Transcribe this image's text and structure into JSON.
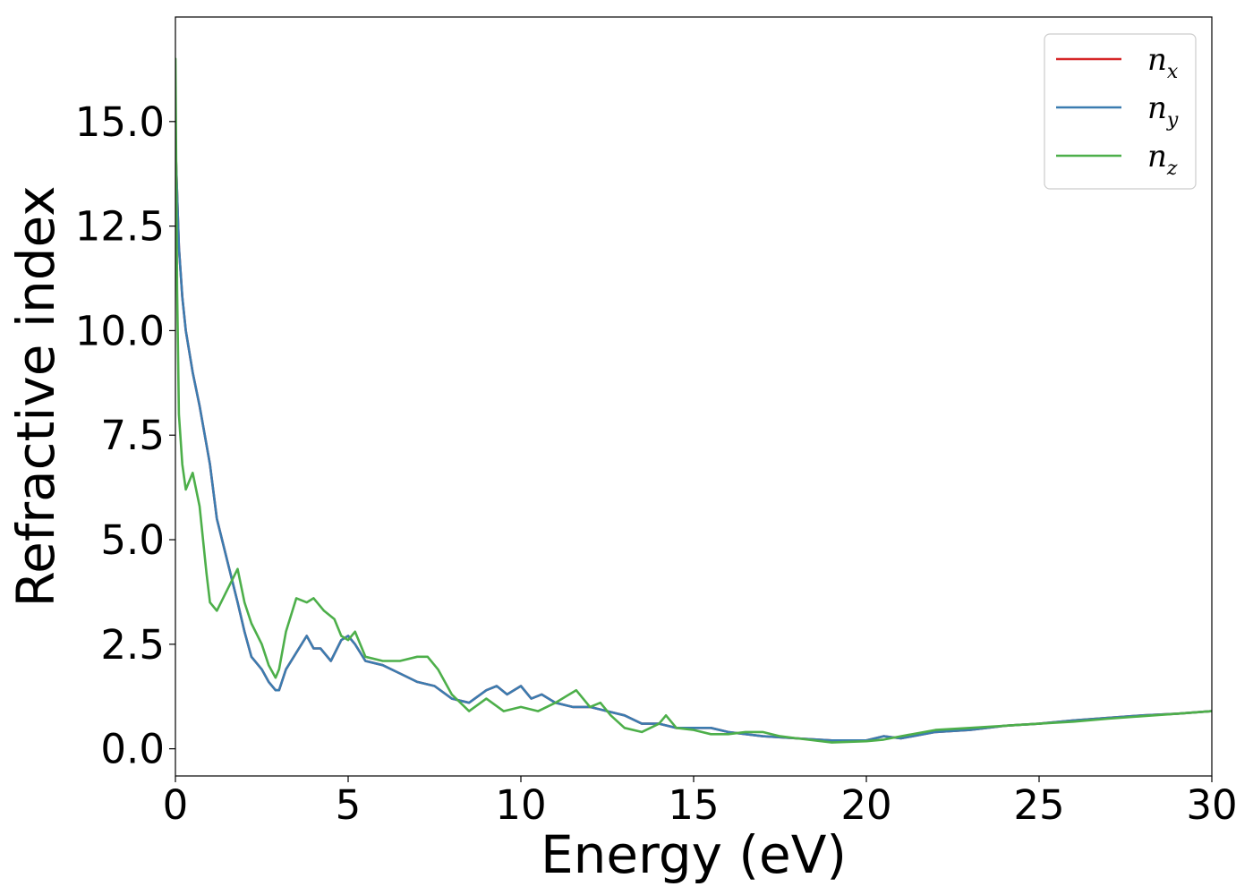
{
  "chart_data": {
    "type": "line",
    "xlabel": "Energy (eV)",
    "ylabel": "Refractive index",
    "xlim": [
      0,
      30
    ],
    "ylim": [
      -0.65,
      17.5
    ],
    "grid": false,
    "legend_position": "top-right",
    "x_ticks": [
      0,
      5,
      10,
      15,
      20,
      25,
      30
    ],
    "x_tick_labels": [
      "0",
      "5",
      "10",
      "15",
      "20",
      "25",
      "30"
    ],
    "y_ticks": [
      0,
      2.5,
      5,
      7.5,
      10,
      12.5,
      15
    ],
    "y_tick_labels": [
      "0.0",
      "2.5",
      "5.0",
      "7.5",
      "10.0",
      "12.5",
      "15.0"
    ],
    "series": [
      {
        "name": "n_x",
        "legend_base": "n",
        "legend_sub": "x",
        "color": "#d62728",
        "x": [
          0,
          0.1,
          0.2,
          0.3,
          0.5,
          0.7,
          1.0,
          1.2,
          1.5,
          1.8,
          2.0,
          2.2,
          2.5,
          2.7,
          2.9,
          3.0,
          3.2,
          3.5,
          3.8,
          4.0,
          4.2,
          4.5,
          4.8,
          5.0,
          5.2,
          5.5,
          6.0,
          6.5,
          7.0,
          7.5,
          8.0,
          8.5,
          9.0,
          9.3,
          9.6,
          10.0,
          10.3,
          10.6,
          11.0,
          11.5,
          12.0,
          12.5,
          13.0,
          13.5,
          14.0,
          14.5,
          15.0,
          15.5,
          16.0,
          17.0,
          18.0,
          19.0,
          20.0,
          20.5,
          21.0,
          22.0,
          23.0,
          24.0,
          25.0,
          26.0,
          27.0,
          28.0,
          29.0,
          30.0
        ],
        "y": [
          14.5,
          12.0,
          10.8,
          10.0,
          9.0,
          8.2,
          6.8,
          5.5,
          4.5,
          3.5,
          2.8,
          2.2,
          1.9,
          1.6,
          1.4,
          1.4,
          1.9,
          2.3,
          2.7,
          2.4,
          2.4,
          2.1,
          2.6,
          2.7,
          2.5,
          2.1,
          2.0,
          1.8,
          1.6,
          1.5,
          1.2,
          1.1,
          1.4,
          1.5,
          1.3,
          1.5,
          1.2,
          1.3,
          1.1,
          1.0,
          1.0,
          0.9,
          0.8,
          0.6,
          0.6,
          0.5,
          0.5,
          0.5,
          0.4,
          0.3,
          0.25,
          0.2,
          0.2,
          0.3,
          0.25,
          0.4,
          0.45,
          0.55,
          0.6,
          0.68,
          0.74,
          0.8,
          0.84,
          0.9
        ]
      },
      {
        "name": "n_y",
        "legend_base": "n",
        "legend_sub": "y",
        "color": "#3b7cb0",
        "x": [
          0,
          0.1,
          0.2,
          0.3,
          0.5,
          0.7,
          1.0,
          1.2,
          1.5,
          1.8,
          2.0,
          2.2,
          2.5,
          2.7,
          2.9,
          3.0,
          3.2,
          3.5,
          3.8,
          4.0,
          4.2,
          4.5,
          4.8,
          5.0,
          5.2,
          5.5,
          6.0,
          6.5,
          7.0,
          7.5,
          8.0,
          8.5,
          9.0,
          9.3,
          9.6,
          10.0,
          10.3,
          10.6,
          11.0,
          11.5,
          12.0,
          12.5,
          13.0,
          13.5,
          14.0,
          14.5,
          15.0,
          15.5,
          16.0,
          17.0,
          18.0,
          19.0,
          20.0,
          20.5,
          21.0,
          22.0,
          23.0,
          24.0,
          25.0,
          26.0,
          27.0,
          28.0,
          29.0,
          30.0
        ],
        "y": [
          14.5,
          12.0,
          10.8,
          10.0,
          9.0,
          8.2,
          6.8,
          5.5,
          4.5,
          3.5,
          2.8,
          2.2,
          1.9,
          1.6,
          1.4,
          1.4,
          1.9,
          2.3,
          2.7,
          2.4,
          2.4,
          2.1,
          2.6,
          2.7,
          2.5,
          2.1,
          2.0,
          1.8,
          1.6,
          1.5,
          1.2,
          1.1,
          1.4,
          1.5,
          1.3,
          1.5,
          1.2,
          1.3,
          1.1,
          1.0,
          1.0,
          0.9,
          0.8,
          0.6,
          0.6,
          0.5,
          0.5,
          0.5,
          0.4,
          0.3,
          0.25,
          0.2,
          0.2,
          0.3,
          0.25,
          0.4,
          0.45,
          0.55,
          0.6,
          0.68,
          0.74,
          0.8,
          0.84,
          0.9
        ]
      },
      {
        "name": "n_z",
        "legend_base": "n",
        "legend_sub": "z",
        "color": "#4daf4a",
        "x": [
          0,
          0.05,
          0.1,
          0.2,
          0.3,
          0.5,
          0.7,
          0.9,
          1.0,
          1.2,
          1.5,
          1.8,
          2.0,
          2.2,
          2.5,
          2.7,
          2.9,
          3.0,
          3.2,
          3.5,
          3.8,
          4.0,
          4.3,
          4.6,
          4.8,
          5.0,
          5.2,
          5.5,
          6.0,
          6.5,
          7.0,
          7.3,
          7.6,
          8.0,
          8.5,
          9.0,
          9.5,
          10.0,
          10.5,
          11.0,
          11.6,
          12.0,
          12.3,
          12.6,
          13.0,
          13.5,
          14.0,
          14.2,
          14.5,
          15.0,
          15.5,
          16.0,
          16.5,
          17.0,
          17.5,
          18.0,
          19.0,
          20.0,
          20.5,
          21.0,
          22.0,
          23.0,
          24.0,
          25.0,
          26.0,
          27.0,
          28.0,
          29.0,
          30.0
        ],
        "y": [
          16.5,
          11.0,
          8.0,
          6.8,
          6.2,
          6.6,
          5.8,
          4.2,
          3.5,
          3.3,
          3.8,
          4.3,
          3.5,
          3.0,
          2.5,
          2.0,
          1.7,
          1.9,
          2.8,
          3.6,
          3.5,
          3.6,
          3.3,
          3.1,
          2.7,
          2.6,
          2.8,
          2.2,
          2.1,
          2.1,
          2.2,
          2.2,
          1.9,
          1.3,
          0.9,
          1.2,
          0.9,
          1.0,
          0.9,
          1.1,
          1.4,
          1.0,
          1.1,
          0.8,
          0.5,
          0.4,
          0.6,
          0.8,
          0.5,
          0.45,
          0.35,
          0.35,
          0.4,
          0.4,
          0.3,
          0.25,
          0.15,
          0.18,
          0.22,
          0.3,
          0.45,
          0.5,
          0.55,
          0.6,
          0.65,
          0.72,
          0.78,
          0.84,
          0.9
        ]
      }
    ]
  }
}
